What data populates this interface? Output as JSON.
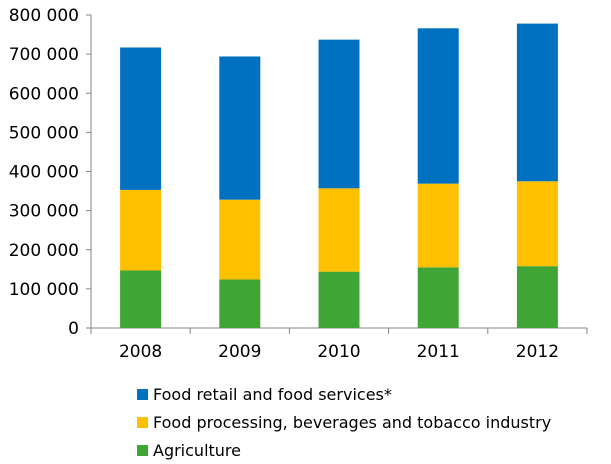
{
  "chart_data": {
    "type": "bar",
    "stacked": true,
    "title": "",
    "xlabel": "",
    "ylabel": "",
    "ylim": [
      0,
      800000
    ],
    "y_ticks": [
      0,
      100000,
      200000,
      300000,
      400000,
      500000,
      600000,
      700000,
      800000
    ],
    "y_tick_labels": [
      "0",
      "100 000",
      "200 000",
      "300 000",
      "400 000",
      "500 000",
      "600 000",
      "700 000",
      "800 000"
    ],
    "categories": [
      "2008",
      "2009",
      "2010",
      "2011",
      "2012"
    ],
    "series": [
      {
        "name": "Agriculture",
        "color": "#3FA535",
        "values": [
          147000,
          124000,
          144000,
          155000,
          158000
        ]
      },
      {
        "name": "Food processing, beverages and tobacco industry",
        "color": "#FFC000",
        "values": [
          206000,
          204000,
          213000,
          214000,
          217000
        ]
      },
      {
        "name": "Food retail and food services*",
        "color": "#0070C0",
        "values": [
          364000,
          366000,
          380000,
          397000,
          403000
        ]
      }
    ],
    "legend": {
      "placement": "bottom",
      "order": [
        "Food retail and food services*",
        "Food processing, beverages and tobacco industry",
        "Agriculture"
      ]
    },
    "grid": false
  }
}
